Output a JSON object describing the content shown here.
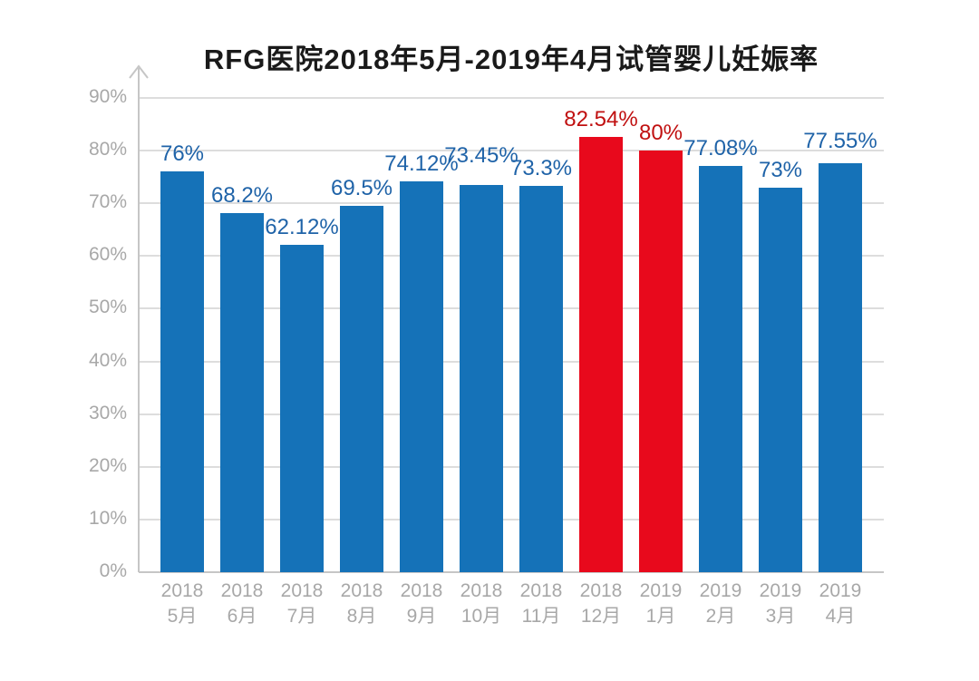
{
  "chart_data": {
    "type": "bar",
    "title": "RFG医院2018年5月-2019年4月试管婴儿妊娠率",
    "categories": [
      {
        "year": "2018",
        "month": "5月"
      },
      {
        "year": "2018",
        "month": "6月"
      },
      {
        "year": "2018",
        "month": "7月"
      },
      {
        "year": "2018",
        "month": "8月"
      },
      {
        "year": "2018",
        "month": "9月"
      },
      {
        "year": "2018",
        "month": "10月"
      },
      {
        "year": "2018",
        "month": "11月"
      },
      {
        "year": "2018",
        "month": "12月"
      },
      {
        "year": "2019",
        "month": "1月"
      },
      {
        "year": "2019",
        "month": "2月"
      },
      {
        "year": "2019",
        "month": "3月"
      },
      {
        "year": "2019",
        "month": "4月"
      }
    ],
    "values": [
      76,
      68.2,
      62.12,
      69.5,
      74.12,
      73.45,
      73.3,
      82.54,
      80,
      77.08,
      73,
      77.55
    ],
    "value_labels": [
      "76%",
      "68.2%",
      "62.12%",
      "69.5%",
      "74.12%",
      "73.45%",
      "73.3%",
      "82.54%",
      "80%",
      "77.08%",
      "73%",
      "77.55%"
    ],
    "bar_color_keys": [
      "blue",
      "blue",
      "blue",
      "blue",
      "blue",
      "blue",
      "blue",
      "red",
      "red",
      "blue",
      "blue",
      "blue"
    ],
    "label_offsets": [
      0,
      0,
      0,
      0,
      0,
      -13,
      0,
      0,
      0,
      0,
      0,
      -5
    ],
    "palette": {
      "blue": "#1572B8",
      "red": "#E8091C",
      "label_blue": "#1F63A8",
      "label_red": "#C01010"
    },
    "axis_colors": {
      "grid": "#DDDDDD",
      "baseline": "#C6C6C6",
      "axis": "#C6C6C6",
      "tick_text": "#A8A8A8"
    },
    "y_ticks": [
      "0%",
      "10%",
      "20%",
      "30%",
      "40%",
      "50%",
      "60%",
      "70%",
      "80%",
      "90%"
    ],
    "ylim": [
      0,
      90
    ],
    "xlabel": "",
    "ylabel": "",
    "grid": true,
    "legend": false
  }
}
